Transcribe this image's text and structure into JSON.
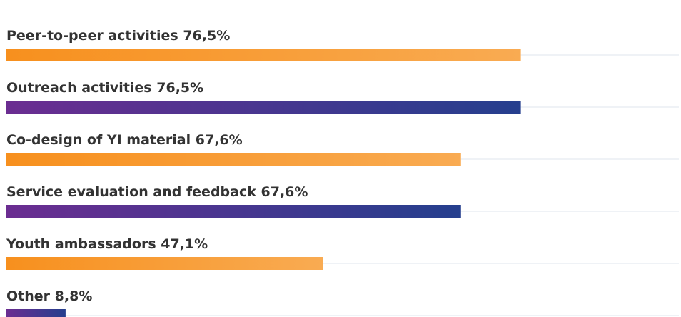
{
  "chart_data": {
    "type": "bar",
    "orientation": "horizontal",
    "categories": [
      "Peer-to-peer activities",
      "Outreach activities",
      "Co-design of YI material",
      "Service evaluation and feedback",
      "Youth ambassadors",
      "Other"
    ],
    "values": [
      76.5,
      76.5,
      67.6,
      67.6,
      47.1,
      8.8
    ],
    "value_labels": [
      "76,5%",
      "76,5%",
      "67,6%",
      "67,6%",
      "47,1%",
      "8,8%"
    ],
    "colors": [
      [
        "#f7901e",
        "#f9ab52"
      ],
      [
        "#6b2d91",
        "#253f8e"
      ],
      [
        "#f7901e",
        "#f9ab52"
      ],
      [
        "#6b2d91",
        "#253f8e"
      ],
      [
        "#f7901e",
        "#f9ab52"
      ],
      [
        "#6b2d91",
        "#253f8e"
      ]
    ],
    "xlim": [
      0,
      100
    ]
  }
}
